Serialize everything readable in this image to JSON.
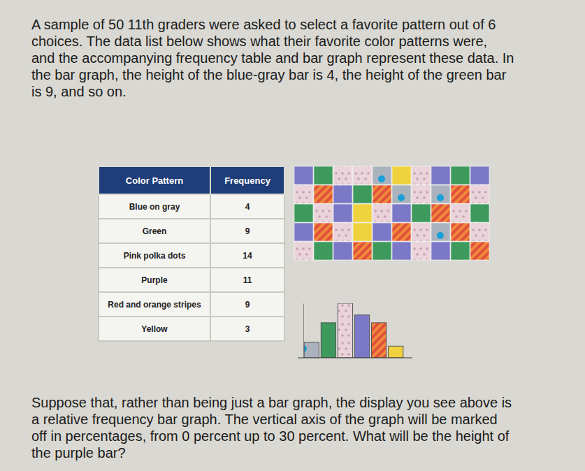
{
  "intro": [
    "A sample of 50 11th graders were asked to select a favorite pattern out of 6",
    "choices. The data list below shows what their favorite color patterns were,",
    "and the accompanying frequency table and bar graph represent these data. In",
    "the bar graph, the height of the blue-gray bar is 4, the height of the green bar",
    "is 9, and so on."
  ],
  "table": {
    "header": [
      "Color Pattern",
      "Frequency"
    ],
    "rows": [
      [
        "Blue on gray",
        4
      ],
      [
        "Green",
        9
      ],
      [
        "Pink polka dots",
        14
      ],
      [
        "Purple",
        11
      ],
      [
        "Red and orange stripes",
        9
      ],
      [
        "Yellow",
        3
      ]
    ]
  },
  "mosaic": {
    "cells": [
      [
        3,
        1,
        2,
        2,
        0,
        5,
        2,
        3,
        1,
        3
      ],
      [
        2,
        4,
        3,
        1,
        4,
        0,
        2,
        0,
        4,
        2
      ],
      [
        1,
        2,
        3,
        5,
        2,
        3,
        1,
        4,
        2,
        1
      ],
      [
        3,
        4,
        2,
        5,
        3,
        4,
        2,
        0,
        4,
        2
      ],
      [
        2,
        1,
        3,
        4,
        1,
        3,
        2,
        3,
        1,
        4
      ]
    ]
  },
  "chart_data": {
    "type": "bar",
    "categories": [
      null,
      null,
      null,
      null,
      null,
      null
    ],
    "values": [
      4,
      9,
      14,
      11,
      9,
      3
    ],
    "colors": [
      "#8a95a3",
      "#3d9a5c",
      "#ead3da",
      "#7b78c8",
      "#e0503c",
      "#efd23e"
    ],
    "ylim": [
      0,
      14
    ],
    "tick_labels": false
  },
  "question": [
    "Suppose that, rather than being just a bar graph, the display you see above is",
    "a relative frequency bar graph. The vertical axis of the graph will be marked",
    "off in percentages, from 0 percent up to 30 percent. What will be the height of",
    "the purple bar?"
  ]
}
